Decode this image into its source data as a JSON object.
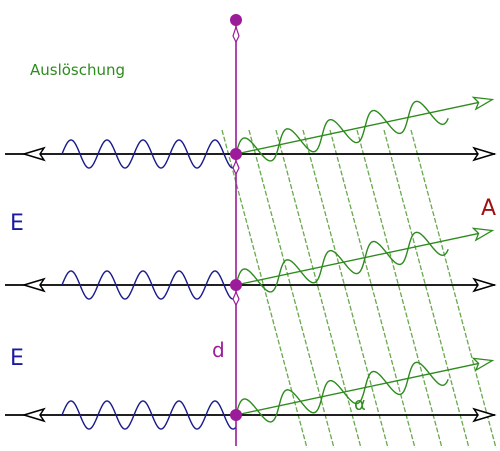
{
  "labels": {
    "title": "Auslöschung",
    "incoming_1": "E",
    "incoming_2": "E",
    "outgoing": "A",
    "spacing": "d",
    "angle": "α"
  },
  "colors": {
    "axis": "#000000",
    "incoming_wave": "#1a1a8c",
    "outgoing_wave": "#2e8b1e",
    "wavefront": "#6aa84f",
    "grating": "#9b1b9b",
    "label_e": "#1a1aa0",
    "label_a": "#a01010",
    "label_title": "#2e8b1e"
  },
  "arrays": {
    "beam_count": 3,
    "wavefront_count": 8
  }
}
